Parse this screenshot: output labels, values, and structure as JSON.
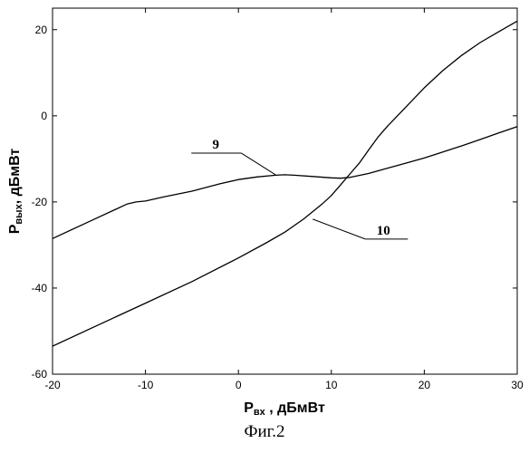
{
  "chart_data": {
    "type": "line",
    "xlabel": {
      "main": "P",
      "sub": "вх",
      "rest": " , дБмВт"
    },
    "ylabel": {
      "main": "P",
      "sub": "вых",
      "rest": ", дБмВт"
    },
    "xlim": [
      -20,
      30
    ],
    "ylim": [
      -60,
      25
    ],
    "xticks": [
      -20,
      -10,
      0,
      10,
      20,
      30
    ],
    "yticks": [
      -60,
      -40,
      -20,
      0,
      20
    ],
    "grid": false,
    "series": [
      {
        "name": "9",
        "color": "#000000",
        "x": [
          -20,
          -16,
          -12,
          -11,
          -10,
          -8,
          -5,
          -2,
          0,
          2,
          4,
          5,
          6,
          8,
          10,
          11,
          12,
          14,
          16,
          18,
          20,
          22,
          24,
          26,
          28,
          30
        ],
        "y": [
          -28.5,
          -24.5,
          -20.5,
          -20,
          -19.8,
          -18.8,
          -17.5,
          -15.8,
          -14.8,
          -14.2,
          -13.8,
          -13.7,
          -13.8,
          -14.1,
          -14.4,
          -14.5,
          -14.3,
          -13.4,
          -12.2,
          -11,
          -9.8,
          -8.4,
          -7,
          -5.5,
          -4,
          -2.5
        ]
      },
      {
        "name": "10",
        "color": "#000000",
        "x": [
          -20,
          -15,
          -10,
          -5,
          0,
          3,
          5,
          7,
          9,
          10,
          11,
          12,
          13,
          14,
          15,
          16,
          18,
          20,
          22,
          24,
          26,
          28,
          30
        ],
        "y": [
          -53.5,
          -48.5,
          -43.5,
          -38.5,
          -33,
          -29.5,
          -27,
          -24,
          -20.5,
          -18.5,
          -16,
          -13.5,
          -11,
          -8,
          -5,
          -2.5,
          2,
          6.5,
          10.5,
          14,
          17,
          19.5,
          22
        ]
      }
    ],
    "annotations": [
      {
        "text": "9",
        "series": "9",
        "x": 4,
        "y": -13.7
      },
      {
        "text": "10",
        "series": "10",
        "x": 8,
        "y": -24
      }
    ]
  },
  "caption": "Фиг.2"
}
